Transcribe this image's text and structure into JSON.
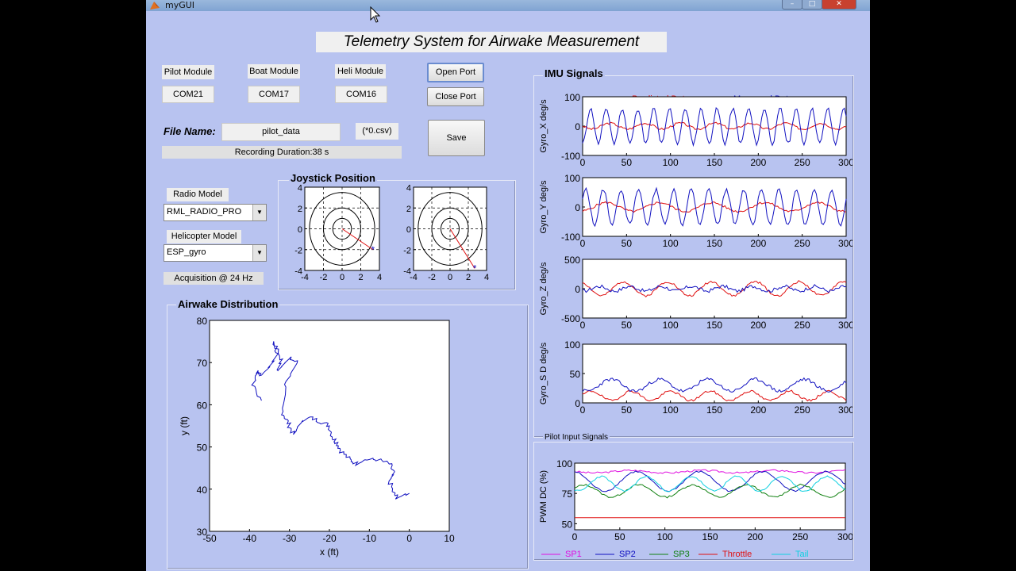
{
  "window": {
    "title": "myGUI",
    "min": "–",
    "max": "□",
    "close": "✕",
    "app_icon": "matlab-icon"
  },
  "main_title": "Telemetry System for Airwake Measurement",
  "modules": [
    {
      "label": "Pilot Module",
      "port": "COM21"
    },
    {
      "label": "Boat Module",
      "port": "COM17"
    },
    {
      "label": "Heli Module",
      "port": "COM16"
    }
  ],
  "buttons": {
    "open_port": "Open Port",
    "close_port": "Close Port",
    "save": "Save"
  },
  "file": {
    "label": "File Name:",
    "value": "pilot_data",
    "ext": "(*0.csv)",
    "duration": "Recording Duration:38 s"
  },
  "radio": {
    "label": "Radio Model",
    "value": "RML_RADIO_PRO"
  },
  "helicopter": {
    "label": "Helicopter Model",
    "value": "ESP_gyro"
  },
  "acquisition": "Acquisition @  24 Hz",
  "joystick": {
    "title": "Joystick Position"
  },
  "airwake": {
    "title": "Airwake Distribution"
  },
  "imu": {
    "title": "IMU Signals"
  },
  "pilot": {
    "title": "Pilot Input Signals"
  },
  "colors": {
    "window_bg": "#B8C3F0",
    "red": "#E01010",
    "blue": "#1010C0",
    "magenta": "#E010E0",
    "green": "#108010",
    "cyan": "#10D0E0"
  },
  "chart_data": [
    {
      "type": "scatter",
      "title": "Joystick Position",
      "subplots": [
        {
          "xlim": [
            -4,
            4
          ],
          "ylim": [
            -4,
            4
          ],
          "xticks": [
            -4,
            -2,
            0,
            2,
            4
          ],
          "yticks": [
            -4,
            -2,
            0,
            2,
            4
          ],
          "vector_end": [
            3.3,
            -2.0
          ]
        },
        {
          "xlim": [
            -4,
            4
          ],
          "ylim": [
            -4,
            4
          ],
          "xticks": [
            -4,
            -2,
            0,
            2,
            4
          ],
          "yticks": [
            -4,
            -2,
            0,
            2,
            4
          ],
          "vector_end": [
            2.7,
            -3.8
          ]
        }
      ]
    },
    {
      "type": "line",
      "title": "Airwake Distribution",
      "xlabel": "x (ft)",
      "ylabel": "y (ft)",
      "xlim": [
        -50,
        10
      ],
      "ylim": [
        30,
        80
      ],
      "xticks": [
        -50,
        -40,
        -30,
        -20,
        -10,
        0,
        10
      ],
      "yticks": [
        30,
        40,
        50,
        60,
        70,
        80
      ],
      "x": [
        -37,
        -39,
        -38,
        -37,
        -35,
        -33,
        -34,
        -32,
        -33,
        -31,
        -30,
        -28,
        -31,
        -32,
        -31,
        -30,
        -29,
        -27,
        -25,
        -22,
        -20,
        -19,
        -18,
        -17,
        -15,
        -13,
        -11,
        -8,
        -5,
        -4,
        -5,
        -4,
        -3,
        0
      ],
      "y": [
        61,
        65,
        68,
        67,
        69,
        72,
        75,
        71,
        68,
        70,
        71,
        70,
        65,
        59,
        57,
        55,
        53,
        56,
        57,
        56,
        55,
        52,
        51,
        49,
        47,
        46,
        47,
        47,
        46,
        44,
        42,
        39,
        38,
        39
      ]
    },
    {
      "type": "line",
      "title": "IMU Signals",
      "legend": [
        "Predicted Data",
        "Measured Data"
      ],
      "legend_placement": "top",
      "xlim": [
        0,
        300
      ],
      "xticks": [
        0,
        50,
        100,
        150,
        200,
        250,
        300
      ],
      "panels": [
        {
          "ylabel": "Gyro_X deg/s",
          "ylim": [
            -100,
            100
          ],
          "yticks": [
            -100,
            0,
            100
          ],
          "series": [
            {
              "name": "Predicted Data",
              "amp": 10,
              "period": 40
            },
            {
              "name": "Measured Data",
              "amp": 60,
              "period": 18
            }
          ]
        },
        {
          "ylabel": "Gyro_Y deg/s",
          "ylim": [
            -100,
            100
          ],
          "yticks": [
            -100,
            0,
            100
          ],
          "series": [
            {
              "name": "Predicted Data",
              "amp": 15,
              "period": 60
            },
            {
              "name": "Measured Data",
              "amp": 60,
              "period": 20
            }
          ]
        },
        {
          "ylabel": "Gyro_Z deg/s",
          "ylim": [
            -500,
            500
          ],
          "yticks": [
            -500,
            0,
            500
          ],
          "series": [
            {
              "name": "Predicted Data",
              "amp": 120,
              "period": 50
            },
            {
              "name": "Measured Data",
              "amp": 40,
              "period": 35
            }
          ]
        },
        {
          "ylabel": "Gyro_S D deg/s",
          "ylim": [
            0,
            100
          ],
          "yticks": [
            0,
            50,
            100
          ],
          "series": [
            {
              "name": "Predicted Data",
              "base": 12,
              "amp": 8,
              "period": 45
            },
            {
              "name": "Measured Data",
              "base": 30,
              "amp": 10,
              "period": 55
            }
          ]
        }
      ]
    },
    {
      "type": "line",
      "title": "Pilot Input Signals",
      "ylabel": "PWM DC (%)",
      "xlim": [
        0,
        300
      ],
      "ylim": [
        45,
        100
      ],
      "xticks": [
        0,
        50,
        100,
        150,
        200,
        250,
        300
      ],
      "yticks": [
        50,
        75,
        100
      ],
      "legend_placement": "bottom",
      "series": [
        {
          "name": "SP1",
          "base": 93,
          "amp": 1,
          "period": 80
        },
        {
          "name": "SP2",
          "base": 85,
          "amp": 8,
          "period": 70
        },
        {
          "name": "SP3",
          "base": 77,
          "amp": 5,
          "period": 60
        },
        {
          "name": "Throttle",
          "base": 55,
          "amp": 0,
          "period": 1
        },
        {
          "name": "Tail",
          "base": 83,
          "amp": 6,
          "period": 50
        }
      ]
    }
  ]
}
